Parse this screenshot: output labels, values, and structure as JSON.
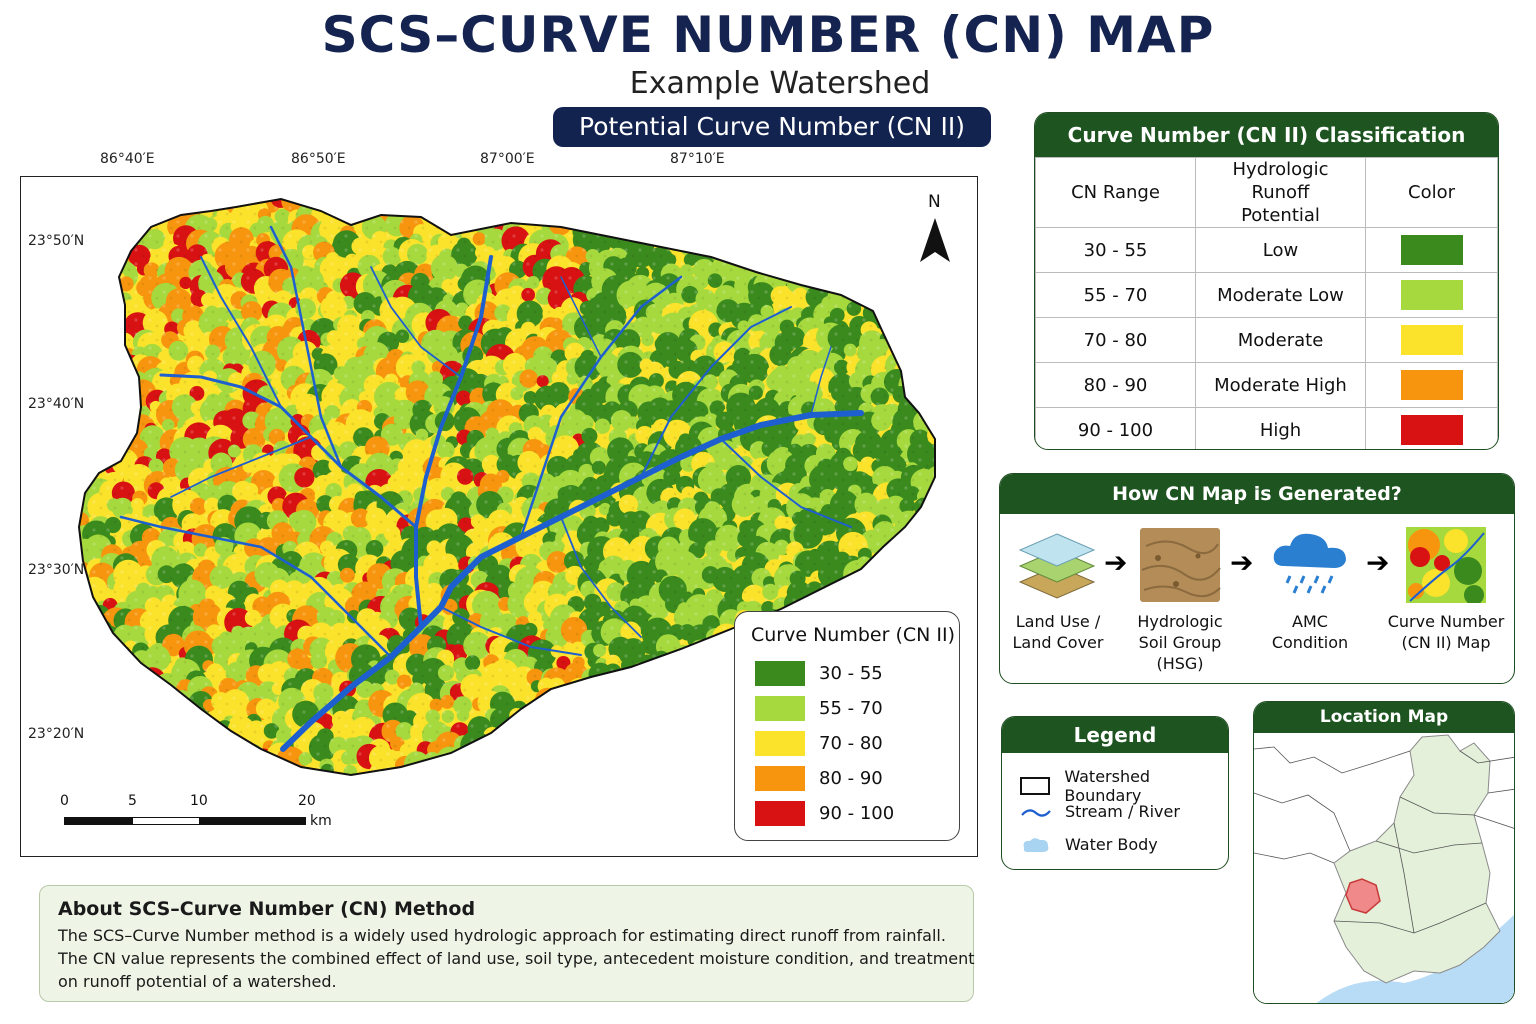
{
  "title": "SCS–CURVE NUMBER (CN) MAP",
  "subtitle": "Example Watershed",
  "map_banner": "Potential Curve Number (CN II)",
  "coordinates": {
    "longitudes": [
      "86°40′E",
      "86°50′E",
      "87°00′E",
      "87°10′E"
    ],
    "latitudes": [
      "23°50′N",
      "23°40′N",
      "23°30′N",
      "23°20′N"
    ]
  },
  "north_label": "N",
  "scale": {
    "ticks": [
      "0",
      "5",
      "10",
      "20"
    ],
    "unit": "km"
  },
  "colors": {
    "cn_30_55": "#3b8a1e",
    "cn_55_70": "#a6d93e",
    "cn_70_80": "#fbe22b",
    "cn_80_90": "#f7960e",
    "cn_90_100": "#d81212",
    "stream": "#1e5fd0",
    "header_green": "#1d5420",
    "title_navy": "#13234f"
  },
  "map_legend": {
    "title": "Curve Number (CN II)",
    "items": [
      {
        "label": "30 - 55",
        "color": "#3b8a1e"
      },
      {
        "label": "55 - 70",
        "color": "#a6d93e"
      },
      {
        "label": "70 - 80",
        "color": "#fbe22b"
      },
      {
        "label": "80 - 90",
        "color": "#f7960e"
      },
      {
        "label": "90 - 100",
        "color": "#d81212"
      }
    ]
  },
  "classification": {
    "title": "Curve Number (CN II) Classification",
    "headers": [
      "CN Range",
      "Hydrologic Runoff Potential",
      "Color"
    ],
    "rows": [
      {
        "range": "30 - 55",
        "potential": "Low",
        "color": "#3b8a1e"
      },
      {
        "range": "55 - 70",
        "potential": "Moderate Low",
        "color": "#a6d93e"
      },
      {
        "range": "70 - 80",
        "potential": "Moderate",
        "color": "#fbe22b"
      },
      {
        "range": "80 - 90",
        "potential": "Moderate High",
        "color": "#f7960e"
      },
      {
        "range": "90 - 100",
        "potential": "High",
        "color": "#d81212"
      }
    ]
  },
  "generation": {
    "title": "How CN Map is Generated?",
    "steps": [
      {
        "line1": "Land Use /",
        "line2": "Land Cover",
        "line3": ""
      },
      {
        "line1": "Hydrologic",
        "line2": "Soil Group",
        "line3": "(HSG)"
      },
      {
        "line1": "AMC",
        "line2": "Condition",
        "line3": ""
      },
      {
        "line1": "Curve Number",
        "line2": "(CN II) Map",
        "line3": ""
      }
    ]
  },
  "legend": {
    "title": "Legend",
    "items": [
      "Watershed Boundary",
      "Stream / River",
      "Water Body"
    ]
  },
  "location_map": {
    "title": "Location Map"
  },
  "about": {
    "title": "About SCS–Curve Number (CN) Method",
    "lines": [
      "The SCS–Curve Number method is a widely used hydrologic approach for estimating direct runoff from rainfall.",
      "The CN value represents the combined effect of land use, soil type, antecedent moisture condition, and treatment",
      "on runoff potential of a watershed."
    ]
  }
}
